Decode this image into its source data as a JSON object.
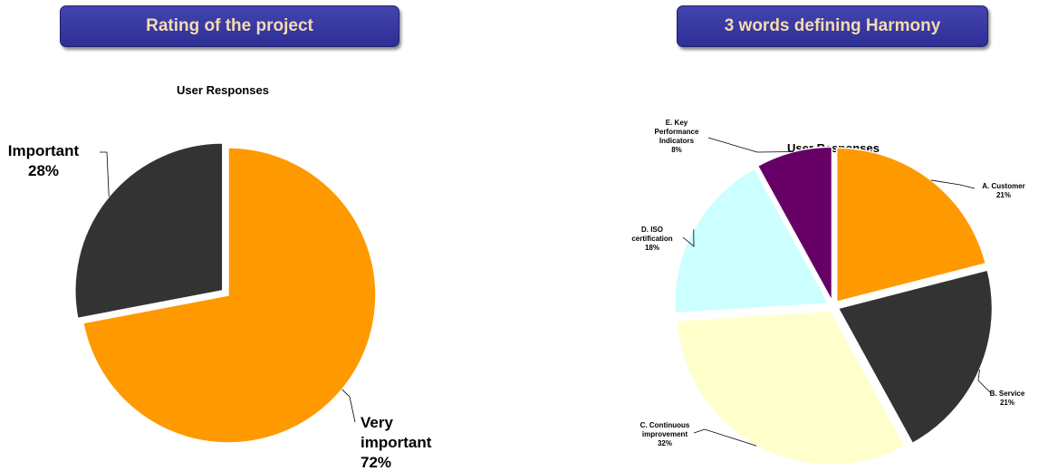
{
  "chart_data": [
    {
      "type": "pie",
      "header": "Rating of the project",
      "title": "User Responses",
      "slices": [
        {
          "label_lines": [
            "Very",
            "important"
          ],
          "pct_label": "72%",
          "value": 72,
          "color": "#ff9900"
        },
        {
          "label_lines": [
            "Important"
          ],
          "pct_label": "28%",
          "value": 28,
          "color": "#333333"
        }
      ]
    },
    {
      "type": "pie",
      "header": "3 words defining Harmony",
      "title": "User Responses",
      "slices": [
        {
          "label_lines": [
            "A. Customer"
          ],
          "pct_label": "21%",
          "value": 21,
          "color": "#ff9900"
        },
        {
          "label_lines": [
            "B. Service"
          ],
          "pct_label": "21%",
          "value": 21,
          "color": "#333333"
        },
        {
          "label_lines": [
            "C. Continuous",
            "improvement"
          ],
          "pct_label": "32%",
          "value": 32,
          "color": "#ffffcc"
        },
        {
          "label_lines": [
            "D. ISO",
            "certification"
          ],
          "pct_label": "18%",
          "value": 18,
          "color": "#ccffff"
        },
        {
          "label_lines": [
            "E. Key",
            "Performance",
            "Indicators"
          ],
          "pct_label": "8%",
          "value": 8,
          "color": "#660066"
        }
      ]
    }
  ]
}
